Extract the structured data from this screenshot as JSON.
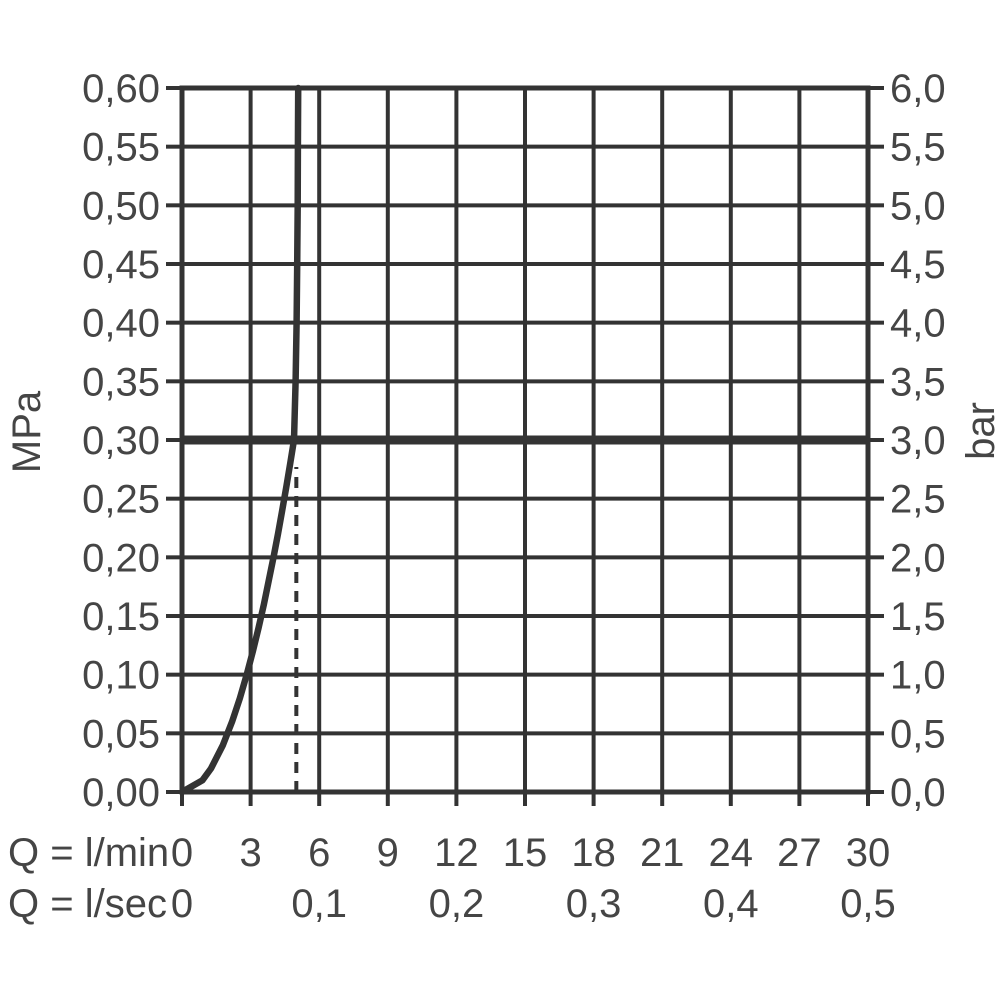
{
  "labels": {
    "y_left_unit": "MPa",
    "y_right_unit": "bar",
    "x_row1_unit": "Q = l/min",
    "x_row2_unit": "Q = l/sec"
  },
  "colors": {
    "line": "#333333",
    "text": "#454545",
    "background": "#ffffff"
  },
  "chart_data": {
    "type": "line",
    "title": "",
    "grid": {
      "on": true,
      "x_step_lmin": 3,
      "y_step_mpa": 0.05
    },
    "x_axis": {
      "primary": {
        "label": "Q = l/min",
        "range": [
          0,
          30
        ],
        "ticks": [
          {
            "v": 0,
            "label": "0"
          },
          {
            "v": 3,
            "label": "3"
          },
          {
            "v": 6,
            "label": "6"
          },
          {
            "v": 9,
            "label": "9"
          },
          {
            "v": 12,
            "label": "12"
          },
          {
            "v": 15,
            "label": "15"
          },
          {
            "v": 18,
            "label": "18"
          },
          {
            "v": 21,
            "label": "21"
          },
          {
            "v": 24,
            "label": "24"
          },
          {
            "v": 27,
            "label": "27"
          },
          {
            "v": 30,
            "label": "30"
          }
        ]
      },
      "secondary": {
        "label": "Q = l/sec",
        "ticks": [
          {
            "lmin": 0,
            "label": "0"
          },
          {
            "lmin": 6,
            "label": "0,1"
          },
          {
            "lmin": 12,
            "label": "0,2"
          },
          {
            "lmin": 18,
            "label": "0,3"
          },
          {
            "lmin": 24,
            "label": "0,4"
          },
          {
            "lmin": 30,
            "label": "0,5"
          }
        ]
      }
    },
    "y_axis": {
      "left": {
        "label": "MPa",
        "range": [
          0,
          0.6
        ],
        "ticks": [
          {
            "v": 0.6,
            "label": "0,60"
          },
          {
            "v": 0.55,
            "label": "0,55"
          },
          {
            "v": 0.5,
            "label": "0,50"
          },
          {
            "v": 0.45,
            "label": "0,45"
          },
          {
            "v": 0.4,
            "label": "0,40"
          },
          {
            "v": 0.35,
            "label": "0,35"
          },
          {
            "v": 0.3,
            "label": "0,30"
          },
          {
            "v": 0.25,
            "label": "0,25"
          },
          {
            "v": 0.2,
            "label": "0,20"
          },
          {
            "v": 0.15,
            "label": "0,15"
          },
          {
            "v": 0.1,
            "label": "0,10"
          },
          {
            "v": 0.05,
            "label": "0,05"
          },
          {
            "v": 0.0,
            "label": "0,00"
          }
        ]
      },
      "right": {
        "label": "bar",
        "range": [
          0,
          6
        ],
        "ticks": [
          {
            "v": 6.0,
            "label": "6,0"
          },
          {
            "v": 5.5,
            "label": "5,5"
          },
          {
            "v": 5.0,
            "label": "5,0"
          },
          {
            "v": 4.5,
            "label": "4,5"
          },
          {
            "v": 4.0,
            "label": "4,0"
          },
          {
            "v": 3.5,
            "label": "3,5"
          },
          {
            "v": 3.0,
            "label": "3,0"
          },
          {
            "v": 2.5,
            "label": "2,5"
          },
          {
            "v": 2.0,
            "label": "2,0"
          },
          {
            "v": 1.5,
            "label": "1,5"
          },
          {
            "v": 1.0,
            "label": "1,0"
          },
          {
            "v": 0.5,
            "label": "0,5"
          },
          {
            "v": 0.0,
            "label": "0,0"
          }
        ]
      }
    },
    "series": [
      {
        "name": "flow-curve",
        "units": [
          "l/min",
          "MPa"
        ],
        "points": [
          [
            0,
            0
          ],
          [
            0.89,
            0.01
          ],
          [
            1.27,
            0.02
          ],
          [
            1.79,
            0.04
          ],
          [
            2.19,
            0.06
          ],
          [
            2.53,
            0.08
          ],
          [
            2.83,
            0.1
          ],
          [
            3.1,
            0.12
          ],
          [
            3.35,
            0.14
          ],
          [
            3.58,
            0.16
          ],
          [
            3.79,
            0.18
          ],
          [
            4.0,
            0.2
          ],
          [
            4.2,
            0.22
          ],
          [
            4.38,
            0.24
          ],
          [
            4.56,
            0.26
          ],
          [
            4.73,
            0.28
          ],
          [
            4.9,
            0.3
          ],
          [
            4.97,
            0.35
          ],
          [
            5.01,
            0.4
          ],
          [
            5.04,
            0.45
          ],
          [
            5.06,
            0.5
          ],
          [
            5.07,
            0.55
          ],
          [
            5.08,
            0.6
          ]
        ]
      }
    ],
    "reference_lines": {
      "horizontal_thick": {
        "mpa": 0.3,
        "bar": 3.0
      },
      "vertical_dashed": {
        "lmin": 5,
        "from_mpa": 0,
        "to_mpa": 0.277
      }
    },
    "legend": {
      "visible": false
    }
  }
}
